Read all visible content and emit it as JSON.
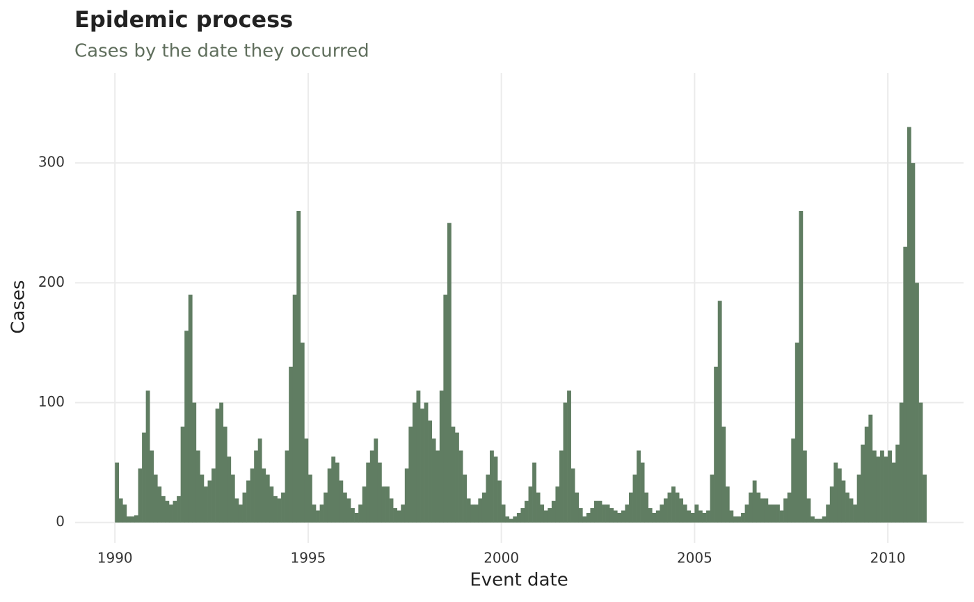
{
  "chart_data": {
    "type": "bar",
    "title": "Epidemic process",
    "subtitle": "Cases by the date they occurred",
    "x_label": "Event date",
    "y_label": "Cases",
    "color": "#607d62",
    "grid": true,
    "xlim": [
      1988.97,
      2011.96
    ],
    "ylim": [
      -17,
      375
    ],
    "xticks": [
      1990,
      1995,
      2000,
      2005,
      2010
    ],
    "yticks": [
      0,
      100,
      200,
      300
    ],
    "x": [
      1990.0,
      1990.1,
      1990.2,
      1990.3,
      1990.4,
      1990.5,
      1990.6,
      1990.7,
      1990.8,
      1990.9,
      1991.0,
      1991.1,
      1991.2,
      1991.3,
      1991.4,
      1991.5,
      1991.6,
      1991.7,
      1991.8,
      1991.9,
      1992.0,
      1992.1,
      1992.2,
      1992.3,
      1992.4,
      1992.5,
      1992.6,
      1992.7,
      1992.8,
      1992.9,
      1993.0,
      1993.1,
      1993.2,
      1993.3,
      1993.4,
      1993.5,
      1993.6,
      1993.7,
      1993.8,
      1993.9,
      1994.0,
      1994.1,
      1994.2,
      1994.3,
      1994.4,
      1994.5,
      1994.6,
      1994.7,
      1994.8,
      1994.9,
      1995.0,
      1995.1,
      1995.2,
      1995.3,
      1995.4,
      1995.5,
      1995.6,
      1995.7,
      1995.8,
      1995.9,
      1996.0,
      1996.1,
      1996.2,
      1996.3,
      1996.4,
      1996.5,
      1996.6,
      1996.7,
      1996.8,
      1996.9,
      1997.0,
      1997.1,
      1997.2,
      1997.3,
      1997.4,
      1997.5,
      1997.6,
      1997.7,
      1997.8,
      1997.9,
      1998.0,
      1998.1,
      1998.2,
      1998.3,
      1998.4,
      1998.5,
      1998.6,
      1998.7,
      1998.8,
      1998.9,
      1999.0,
      1999.1,
      1999.2,
      1999.3,
      1999.4,
      1999.5,
      1999.6,
      1999.7,
      1999.8,
      1999.9,
      2000.0,
      2000.1,
      2000.2,
      2000.3,
      2000.4,
      2000.5,
      2000.6,
      2000.7,
      2000.8,
      2000.9,
      2001.0,
      2001.1,
      2001.2,
      2001.3,
      2001.4,
      2001.5,
      2001.6,
      2001.7,
      2001.8,
      2001.9,
      2002.0,
      2002.1,
      2002.2,
      2002.3,
      2002.4,
      2002.5,
      2002.6,
      2002.7,
      2002.8,
      2002.9,
      2003.0,
      2003.1,
      2003.2,
      2003.3,
      2003.4,
      2003.5,
      2003.6,
      2003.7,
      2003.8,
      2003.9,
      2004.0,
      2004.1,
      2004.2,
      2004.3,
      2004.4,
      2004.5,
      2004.6,
      2004.7,
      2004.8,
      2004.9,
      2005.0,
      2005.1,
      2005.2,
      2005.3,
      2005.4,
      2005.5,
      2005.6,
      2005.7,
      2005.8,
      2005.9,
      2006.0,
      2006.1,
      2006.2,
      2006.3,
      2006.4,
      2006.5,
      2006.6,
      2006.7,
      2006.8,
      2006.9,
      2007.0,
      2007.1,
      2007.2,
      2007.3,
      2007.4,
      2007.5,
      2007.6,
      2007.7,
      2007.8,
      2007.9,
      2008.0,
      2008.1,
      2008.2,
      2008.3,
      2008.4,
      2008.5,
      2008.6,
      2008.7,
      2008.8,
      2008.9,
      2009.0,
      2009.1,
      2009.2,
      2009.3,
      2009.4,
      2009.5,
      2009.6,
      2009.7,
      2009.8,
      2009.9,
      2010.0,
      2010.1,
      2010.2,
      2010.3,
      2010.4,
      2010.5,
      2010.6,
      2010.7,
      2010.8,
      2010.9
    ],
    "values": [
      50,
      20,
      15,
      5,
      5,
      6,
      45,
      75,
      110,
      60,
      40,
      30,
      22,
      18,
      15,
      18,
      22,
      80,
      160,
      190,
      100,
      60,
      40,
      30,
      35,
      45,
      95,
      100,
      80,
      55,
      40,
      20,
      15,
      25,
      35,
      45,
      60,
      70,
      45,
      40,
      30,
      22,
      20,
      25,
      60,
      130,
      190,
      260,
      150,
      70,
      40,
      15,
      10,
      15,
      25,
      45,
      55,
      50,
      35,
      25,
      20,
      12,
      8,
      15,
      30,
      50,
      60,
      70,
      50,
      30,
      30,
      20,
      12,
      10,
      15,
      45,
      80,
      100,
      110,
      95,
      100,
      85,
      70,
      60,
      110,
      190,
      250,
      80,
      75,
      60,
      40,
      20,
      15,
      15,
      20,
      25,
      40,
      60,
      55,
      35,
      15,
      5,
      3,
      5,
      8,
      12,
      18,
      30,
      50,
      25,
      15,
      10,
      12,
      18,
      30,
      60,
      100,
      110,
      45,
      25,
      12,
      5,
      8,
      12,
      18,
      18,
      15,
      15,
      12,
      10,
      8,
      10,
      15,
      25,
      40,
      60,
      50,
      25,
      12,
      8,
      10,
      15,
      20,
      25,
      30,
      25,
      20,
      15,
      10,
      8,
      15,
      10,
      8,
      10,
      40,
      130,
      185,
      80,
      30,
      10,
      5,
      5,
      8,
      15,
      25,
      35,
      25,
      20,
      20,
      15,
      15,
      15,
      10,
      20,
      25,
      70,
      150,
      260,
      60,
      20,
      5,
      3,
      3,
      5,
      15,
      30,
      50,
      45,
      35,
      25,
      20,
      15,
      40,
      65,
      80,
      90,
      60,
      55,
      60,
      55,
      60,
      50,
      65,
      100,
      230,
      330,
      300,
      200,
      100,
      40
    ]
  }
}
